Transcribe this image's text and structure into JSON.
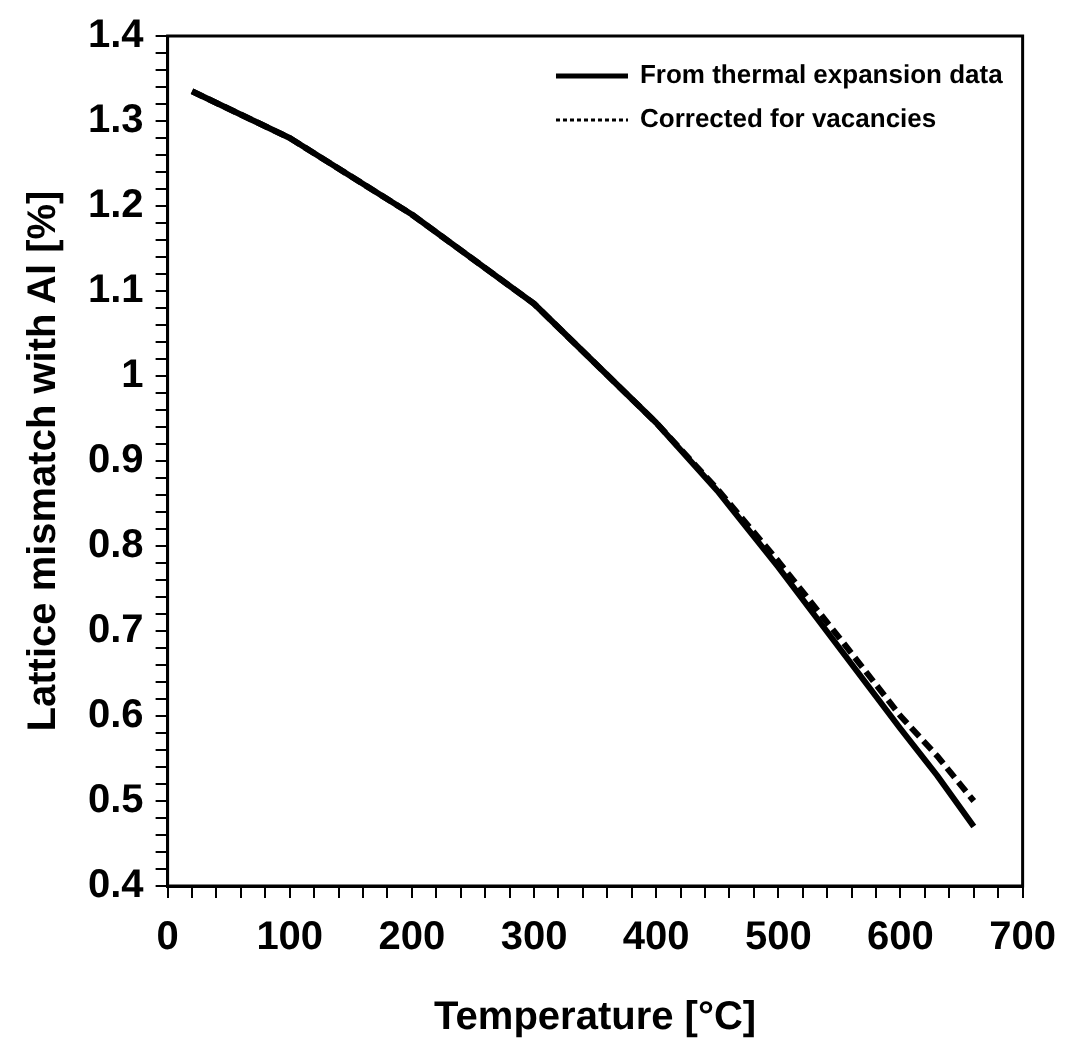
{
  "chart_data": {
    "type": "line",
    "xlabel": "Temperature [°C]",
    "ylabel": "Lattice mismatch with Al [%]",
    "xlim": [
      0,
      700
    ],
    "ylim": [
      0.4,
      1.4
    ],
    "xticks": [
      0,
      {
        "value": 20,
        "label": null
      },
      {
        "value": 40,
        "label": null
      },
      {
        "value": 60,
        "label": null
      },
      {
        "value": 80,
        "label": null
      },
      100,
      {
        "value": 120,
        "label": null
      },
      {
        "value": 140,
        "label": null
      },
      {
        "value": 160,
        "label": null
      },
      {
        "value": 180,
        "label": null
      },
      200,
      {
        "value": 220,
        "label": null
      },
      {
        "value": 240,
        "label": null
      },
      {
        "value": 260,
        "label": null
      },
      {
        "value": 280,
        "label": null
      },
      300,
      {
        "value": 320,
        "label": null
      },
      {
        "value": 340,
        "label": null
      },
      {
        "value": 360,
        "label": null
      },
      {
        "value": 380,
        "label": null
      },
      400,
      {
        "value": 420,
        "label": null
      },
      {
        "value": 440,
        "label": null
      },
      {
        "value": 460,
        "label": null
      },
      {
        "value": 480,
        "label": null
      },
      500,
      {
        "value": 520,
        "label": null
      },
      {
        "value": 540,
        "label": null
      },
      {
        "value": 560,
        "label": null
      },
      {
        "value": 580,
        "label": null
      },
      600,
      {
        "value": 620,
        "label": null
      },
      {
        "value": 640,
        "label": null
      },
      {
        "value": 660,
        "label": null
      },
      {
        "value": 680,
        "label": null
      },
      700
    ],
    "yticks": [
      0.4,
      {
        "value": 0.42,
        "label": null
      },
      {
        "value": 0.44,
        "label": null
      },
      {
        "value": 0.46,
        "label": null
      },
      {
        "value": 0.48,
        "label": null
      },
      0.5,
      {
        "value": 0.52,
        "label": null
      },
      {
        "value": 0.54,
        "label": null
      },
      {
        "value": 0.56,
        "label": null
      },
      {
        "value": 0.58,
        "label": null
      },
      0.6,
      {
        "value": 0.62,
        "label": null
      },
      {
        "value": 0.64,
        "label": null
      },
      {
        "value": 0.66,
        "label": null
      },
      {
        "value": 0.68,
        "label": null
      },
      0.7,
      {
        "value": 0.72,
        "label": null
      },
      {
        "value": 0.74,
        "label": null
      },
      {
        "value": 0.76,
        "label": null
      },
      {
        "value": 0.78,
        "label": null
      },
      0.8,
      {
        "value": 0.82,
        "label": null
      },
      {
        "value": 0.84,
        "label": null
      },
      {
        "value": 0.86,
        "label": null
      },
      {
        "value": 0.88,
        "label": null
      },
      0.9,
      {
        "value": 0.92,
        "label": null
      },
      {
        "value": 0.94,
        "label": null
      },
      {
        "value": 0.96,
        "label": null
      },
      {
        "value": 0.98,
        "label": null
      },
      1,
      {
        "value": 1.02,
        "label": null
      },
      {
        "value": 1.04,
        "label": null
      },
      {
        "value": 1.06,
        "label": null
      },
      {
        "value": 1.08,
        "label": null
      },
      1.1,
      {
        "value": 1.12,
        "label": null
      },
      {
        "value": 1.14,
        "label": null
      },
      {
        "value": 1.16,
        "label": null
      },
      {
        "value": 1.18,
        "label": null
      },
      1.2,
      {
        "value": 1.22,
        "label": null
      },
      {
        "value": 1.24,
        "label": null
      },
      {
        "value": 1.26,
        "label": null
      },
      {
        "value": 1.28,
        "label": null
      },
      1.3,
      {
        "value": 1.32,
        "label": null
      },
      {
        "value": 1.34,
        "label": null
      },
      {
        "value": 1.36,
        "label": null
      },
      {
        "value": 1.38,
        "label": null
      },
      1.4
    ],
    "grid": false,
    "legend": "top right",
    "marker": "none",
    "series": [
      {
        "name": "From thermal expansion data",
        "color": "#000000",
        "line_style": "solid",
        "x": [
          20,
          100,
          200,
          300,
          400,
          450,
          500,
          550,
          600,
          630,
          660
        ],
        "values": [
          1.335,
          1.28,
          1.19,
          1.085,
          0.945,
          0.865,
          0.775,
          0.68,
          0.585,
          0.53,
          0.47
        ]
      },
      {
        "name": "Corrected for vacancies",
        "color": "#000000",
        "line_style": "dashed",
        "x": [
          20,
          100,
          200,
          300,
          400,
          450,
          500,
          550,
          600,
          630,
          660
        ],
        "values": [
          1.335,
          1.28,
          1.19,
          1.085,
          0.945,
          0.867,
          0.782,
          0.692,
          0.6,
          0.553,
          0.5
        ]
      }
    ]
  }
}
